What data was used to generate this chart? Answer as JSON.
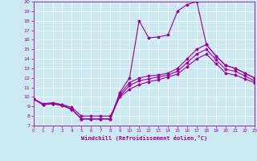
{
  "xlabel": "Windchill (Refroidissement éolien,°C)",
  "xlim": [
    0,
    23
  ],
  "ylim": [
    7,
    20
  ],
  "yticks": [
    7,
    8,
    9,
    10,
    11,
    12,
    13,
    14,
    15,
    16,
    17,
    18,
    19,
    20
  ],
  "xticks": [
    0,
    1,
    2,
    3,
    4,
    5,
    6,
    7,
    8,
    9,
    10,
    11,
    12,
    13,
    14,
    15,
    16,
    17,
    18,
    19,
    20,
    21,
    22,
    23
  ],
  "bg_color": "#cce8f0",
  "line_color": "#990099",
  "grid_color": "#ffffff",
  "line_spike_x": [
    0,
    1,
    2,
    3,
    4,
    5,
    6,
    7,
    8,
    9,
    10,
    11,
    12,
    13,
    14,
    15,
    16,
    17,
    18,
    19,
    20,
    21,
    22,
    23
  ],
  "line_spike_y": [
    9.8,
    9.2,
    9.3,
    9.1,
    8.7,
    7.7,
    7.7,
    7.7,
    7.7,
    10.5,
    12.0,
    18.0,
    16.2,
    16.3,
    16.5,
    19.0,
    19.7,
    20.0,
    15.5,
    14.3,
    13.3,
    13.0,
    12.5,
    12.0
  ],
  "line1_x": [
    0,
    1,
    2,
    3,
    4,
    5,
    6,
    7,
    8,
    9,
    10,
    11,
    12,
    13,
    14,
    15,
    16,
    17,
    18,
    19,
    20,
    21,
    22,
    23
  ],
  "line1_y": [
    9.8,
    9.2,
    9.3,
    9.2,
    8.7,
    7.7,
    7.7,
    7.7,
    7.7,
    10.3,
    11.5,
    12.0,
    12.2,
    12.3,
    12.5,
    13.0,
    14.0,
    15.0,
    15.5,
    14.3,
    13.3,
    13.0,
    12.5,
    12.0
  ],
  "line2_x": [
    0,
    1,
    2,
    3,
    4,
    5,
    6,
    7,
    8,
    9,
    10,
    11,
    12,
    13,
    14,
    15,
    16,
    17,
    18,
    19,
    20,
    21,
    22,
    23
  ],
  "line2_y": [
    9.8,
    9.2,
    9.3,
    9.1,
    8.7,
    7.7,
    7.7,
    7.7,
    7.7,
    10.1,
    11.2,
    11.7,
    11.9,
    12.1,
    12.3,
    12.7,
    13.6,
    14.5,
    15.0,
    13.9,
    12.9,
    12.7,
    12.2,
    11.7
  ],
  "line3_x": [
    0,
    1,
    2,
    3,
    4,
    5,
    6,
    7,
    8,
    9,
    10,
    11,
    12,
    13,
    14,
    15,
    16,
    17,
    18,
    19,
    20,
    21,
    22,
    23
  ],
  "line3_y": [
    9.8,
    9.3,
    9.4,
    9.2,
    8.9,
    8.0,
    8.0,
    8.0,
    8.0,
    10.0,
    10.8,
    11.3,
    11.6,
    11.8,
    12.1,
    12.4,
    13.2,
    14.0,
    14.5,
    13.5,
    12.5,
    12.3,
    11.9,
    11.5
  ]
}
